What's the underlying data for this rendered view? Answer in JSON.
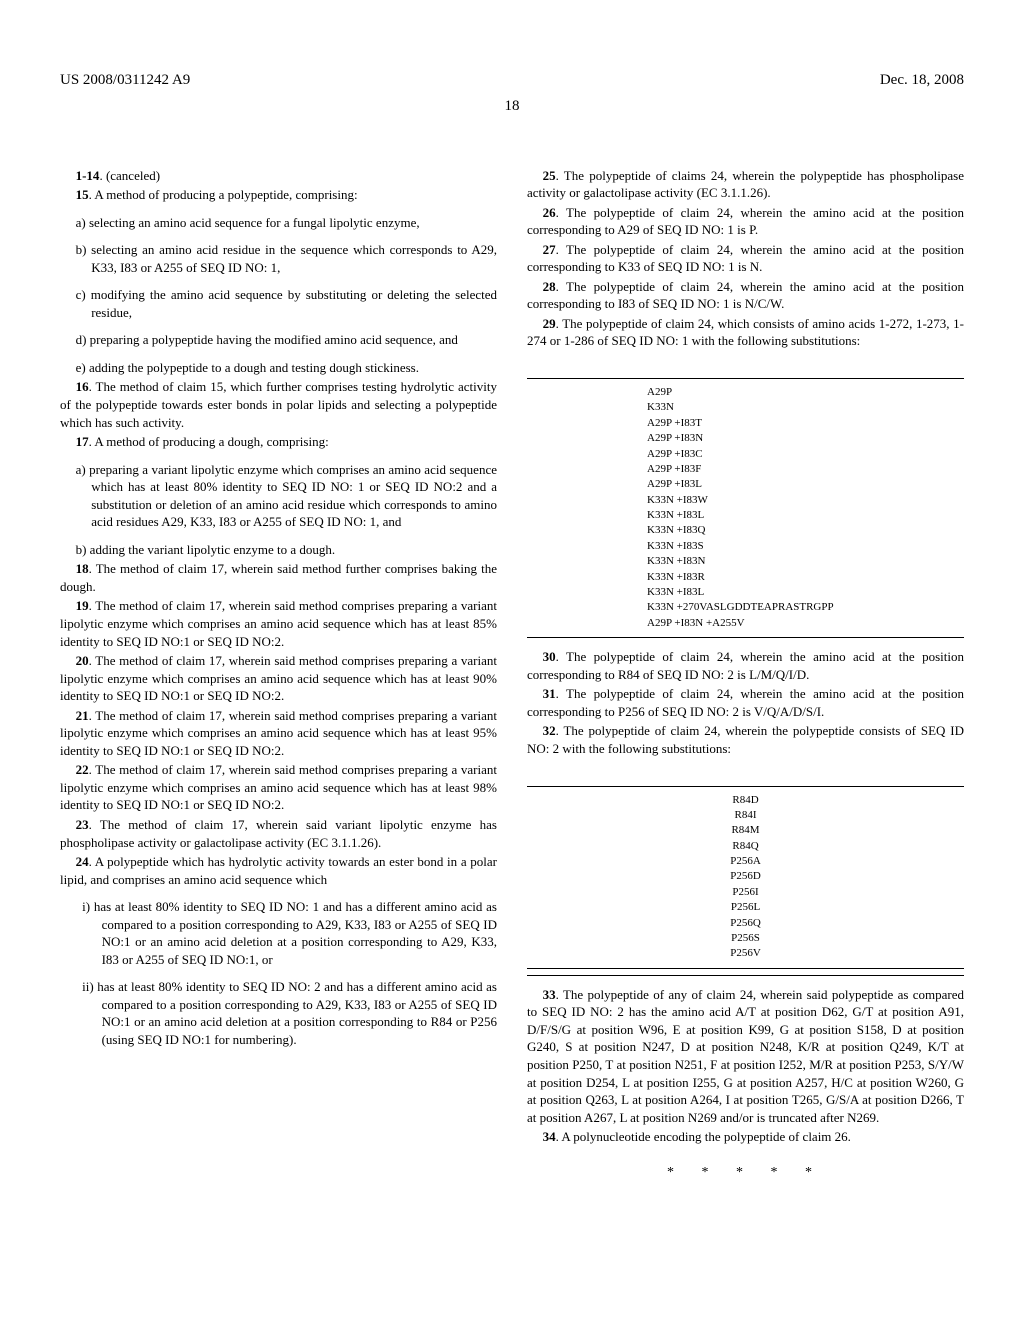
{
  "header": {
    "pub_number": "US 2008/0311242 A9",
    "date": "Dec. 18, 2008"
  },
  "page_number": "18",
  "left": {
    "c1_14": "1-14",
    "c1_14_text": ". (canceled)",
    "c15_num": "15",
    "c15_text": ". A method of producing a polypeptide, comprising:",
    "c15_a": "a) selecting an amino acid sequence for a fungal lipolytic enzyme,",
    "c15_b": "b) selecting an amino acid residue in the sequence which corresponds to A29, K33, I83 or A255 of SEQ ID NO: 1,",
    "c15_c": "c) modifying the amino acid sequence by substituting or deleting the selected residue,",
    "c15_d": "d) preparing a polypeptide having the modified amino acid sequence, and",
    "c15_e": "e) adding the polypeptide to a dough and testing dough stickiness.",
    "c16_num": "16",
    "c16_text": ". The method of claim 15, which further comprises testing hydrolytic activity of the polypeptide towards ester bonds in polar lipids and selecting a polypeptide which has such activity.",
    "c17_num": "17",
    "c17_text": ". A method of producing a dough, comprising:",
    "c17_a": "a) preparing a variant lipolytic enzyme which comprises an amino acid sequence which has at least 80% identity to SEQ ID NO: 1 or SEQ ID NO:2 and a substitution or deletion of an amino acid residue which corresponds to amino acid residues A29, K33, I83 or A255 of SEQ ID NO: 1, and",
    "c17_b": "b) adding the variant lipolytic enzyme to a dough.",
    "c18_num": "18",
    "c18_text": ". The method of claim 17, wherein said method further comprises baking the dough.",
    "c19_num": "19",
    "c19_text": ". The method of claim 17, wherein said method comprises preparing a variant lipolytic enzyme which comprises an amino acid sequence which has at least 85% identity to SEQ ID NO:1 or SEQ ID NO:2.",
    "c20_num": "20",
    "c20_text": ". The method of claim 17, wherein said method comprises preparing a variant lipolytic enzyme which comprises an amino acid sequence which has at least 90% identity to SEQ ID NO:1 or SEQ ID NO:2.",
    "c21_num": "21",
    "c21_text": ". The method of claim 17, wherein said method comprises preparing a variant lipolytic enzyme which comprises an amino acid sequence which has at least 95% identity to SEQ ID NO:1 or SEQ ID NO:2.",
    "c22_num": "22",
    "c22_text": ". The method of claim 17, wherein said method comprises preparing a variant lipolytic enzyme which comprises an amino acid sequence which has at least 98% identity to SEQ ID NO:1 or SEQ ID NO:2.",
    "c23_num": "23",
    "c23_text": ". The method of claim 17, wherein said variant lipolytic enzyme has phospholipase activity or galactolipase activity (EC 3.1.1.26).",
    "c24_num": "24",
    "c24_text": ". A polypeptide which has hydrolytic activity towards an ester bond in a polar lipid, and comprises an amino acid sequence which",
    "c24_i": "i) has at least 80% identity to SEQ ID NO: 1 and has a different amino acid as compared to a position corresponding to A29, K33, I83 or A255 of SEQ ID NO:1 or an amino acid deletion at a position corresponding to A29, K33, I83 or A255 of SEQ ID NO:1, or",
    "c24_ii": "ii) has at least 80% identity to SEQ ID NO: 2 and has a different amino acid as compared to a position corresponding to A29, K33, I83 or A255 of SEQ ID NO:1 or an amino acid deletion at a position corresponding to R84 or P256 (using SEQ ID NO:1 for numbering)."
  },
  "right": {
    "c25_num": "25",
    "c25_text": ". The polypeptide of claims 24, wherein the polypeptide has phospholipase activity or galactolipase activity (EC 3.1.1.26).",
    "c26_num": "26",
    "c26_text": ". The polypeptide of claim 24, wherein the amino acid at the position corresponding to A29 of SEQ ID NO: 1 is P.",
    "c27_num": "27",
    "c27_text": ". The polypeptide of claim 24, wherein the amino acid at the position corresponding to K33 of SEQ ID NO: 1 is N.",
    "c28_num": "28",
    "c28_text": ". The polypeptide of claim 24, wherein the amino acid at the position corresponding to I83 of SEQ ID NO: 1 is N/C/W.",
    "c29_num": "29",
    "c29_text": ". The polypeptide of claim 24, which consists of amino acids 1-272, 1-273, 1-274 or 1-286 of SEQ ID NO: 1 with the following substitutions:",
    "table1": {
      "rows": [
        "A29P",
        "K33N",
        "A29P +I83T",
        "A29P +I83N",
        "A29P +I83C",
        "A29P +I83F",
        "A29P +I83L",
        "K33N +I83W",
        "K33N +I83L",
        "K33N +I83Q",
        "K33N +I83S",
        "K33N +I83N",
        "K33N +I83R",
        "K33N +I83L",
        "K33N +270VASLGDDTEAPRASTRGPP",
        "A29P +I83N +A255V"
      ]
    },
    "c30_num": "30",
    "c30_text": ". The polypeptide of claim 24, wherein the amino acid at the position corresponding to R84 of SEQ ID NO: 2 is L/M/Q/I/D.",
    "c31_num": "31",
    "c31_text": ". The polypeptide of claim 24, wherein the amino acid at the position corresponding to P256 of SEQ ID NO: 2 is V/Q/A/D/S/I.",
    "c32_num": "32",
    "c32_text": ". The polypeptide of claim 24, wherein the polypeptide consists of SEQ ID NO: 2 with the following substitutions:",
    "table2": {
      "rows": [
        "R84D",
        "R84I",
        "R84M",
        "R84Q",
        "P256A",
        "P256D",
        "P256I",
        "P256L",
        "P256Q",
        "P256S",
        "P256V"
      ]
    },
    "c33_num": "33",
    "c33_text": ". The polypeptide of any of claim 24, wherein said polypeptide as compared to SEQ ID NO: 2 has the amino acid A/T at position D62, G/T at position A91, D/F/S/G at position W96, E at position K99, G at position S158, D at position G240, S at position N247, D at position N248, K/R at position Q249, K/T at position P250, T at position N251, F at position I252, M/R at position P253, S/Y/W at position D254, L at position I255, G at position A257, H/C at position W260, G at position Q263, L at position A264, I at position T265, G/S/A at position D266, T at position A267, L at position N269 and/or is truncated after N269.",
    "c34_num": "34",
    "c34_text": ". A polynucleotide encoding the polypeptide of claim 26.",
    "asterisks": "* * * * *"
  }
}
